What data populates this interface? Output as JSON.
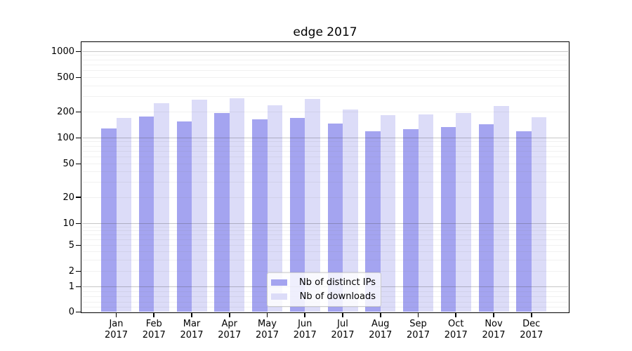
{
  "title": "edge 2017",
  "legend": {
    "items": [
      {
        "label": "Nb of distinct IPs",
        "color": "#a4a4f0"
      },
      {
        "label": "Nb of downloads",
        "color": "#dcdcf8"
      }
    ]
  },
  "chart_data": {
    "type": "bar",
    "title": "edge 2017",
    "xlabel": "",
    "ylabel": "",
    "yscale": "symlog",
    "ylim": [
      0,
      1500
    ],
    "yticks": [
      0,
      1,
      2,
      5,
      10,
      20,
      50,
      100,
      200,
      500,
      1000
    ],
    "grid": "on",
    "legend_position": "lower center",
    "months": [
      "Jan",
      "Feb",
      "Mar",
      "Apr",
      "May",
      "Jun",
      "Jul",
      "Aug",
      "Sep",
      "Oct",
      "Nov",
      "Dec"
    ],
    "year": "2017",
    "categories": [
      "Jan 2017",
      "Feb 2017",
      "Mar 2017",
      "Apr 2017",
      "May 2017",
      "Jun 2017",
      "Jul 2017",
      "Aug 2017",
      "Sep 2017",
      "Oct 2017",
      "Nov 2017",
      "Dec 2017"
    ],
    "series": [
      {
        "name": "Nb of distinct IPs",
        "color": "#a4a4f0",
        "values": [
          128,
          177,
          155,
          192,
          165,
          170,
          146,
          118,
          125,
          134,
          144,
          119
        ]
      },
      {
        "name": "Nb of downloads",
        "color": "#dcdcf8",
        "values": [
          170,
          250,
          278,
          286,
          237,
          283,
          214,
          184,
          186,
          193,
          233,
          172
        ]
      }
    ]
  }
}
